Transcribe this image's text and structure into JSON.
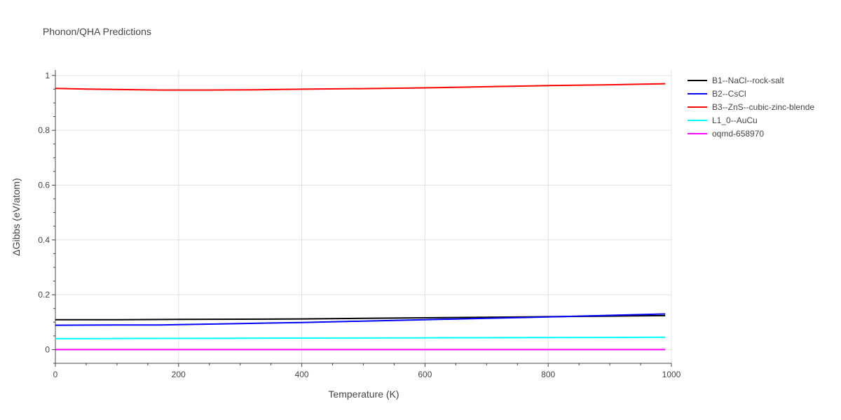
{
  "chart_data": {
    "type": "line",
    "title": "Phonon/QHA Predictions",
    "xlabel": "Temperature (K)",
    "ylabel": "ΔGibbs (eV/atom)",
    "xlim": [
      0,
      1000
    ],
    "ylim": [
      -0.05,
      1.02
    ],
    "xticks": [
      0,
      200,
      400,
      600,
      800,
      1000
    ],
    "yticks": [
      0,
      0.2,
      0.4,
      0.6,
      0.8,
      1
    ],
    "grid": true,
    "legend_position": "top-right outside",
    "series": [
      {
        "name": "B1--NaCl--rock-salt",
        "color": "#000000",
        "x": [
          0,
          100,
          200,
          300,
          400,
          500,
          600,
          700,
          800,
          900,
          990
        ],
        "y": [
          0.109,
          0.109,
          0.11,
          0.111,
          0.112,
          0.114,
          0.116,
          0.118,
          0.12,
          0.122,
          0.124
        ]
      },
      {
        "name": "B2--CsCl",
        "color": "#0000ff",
        "x": [
          0,
          100,
          170,
          200,
          300,
          400,
          500,
          600,
          700,
          800,
          900,
          990
        ],
        "y": [
          0.089,
          0.09,
          0.09,
          0.091,
          0.095,
          0.099,
          0.104,
          0.109,
          0.114,
          0.119,
          0.125,
          0.13
        ]
      },
      {
        "name": "B3--ZnS--cubic-zinc-blende",
        "color": "#ff0000",
        "x": [
          0,
          60,
          170,
          250,
          330,
          400,
          500,
          600,
          700,
          800,
          900,
          990
        ],
        "y": [
          0.953,
          0.95,
          0.947,
          0.947,
          0.948,
          0.95,
          0.952,
          0.955,
          0.959,
          0.963,
          0.966,
          0.97
        ]
      },
      {
        "name": "L1_0--AuCu",
        "color": "#00ffff",
        "x": [
          0,
          200,
          400,
          600,
          800,
          990
        ],
        "y": [
          0.04,
          0.041,
          0.042,
          0.043,
          0.044,
          0.045
        ]
      },
      {
        "name": "oqmd-658970",
        "color": "#ff00ff",
        "x": [
          0,
          200,
          400,
          600,
          800,
          990
        ],
        "y": [
          0,
          0,
          0,
          0,
          0,
          0
        ]
      }
    ]
  }
}
